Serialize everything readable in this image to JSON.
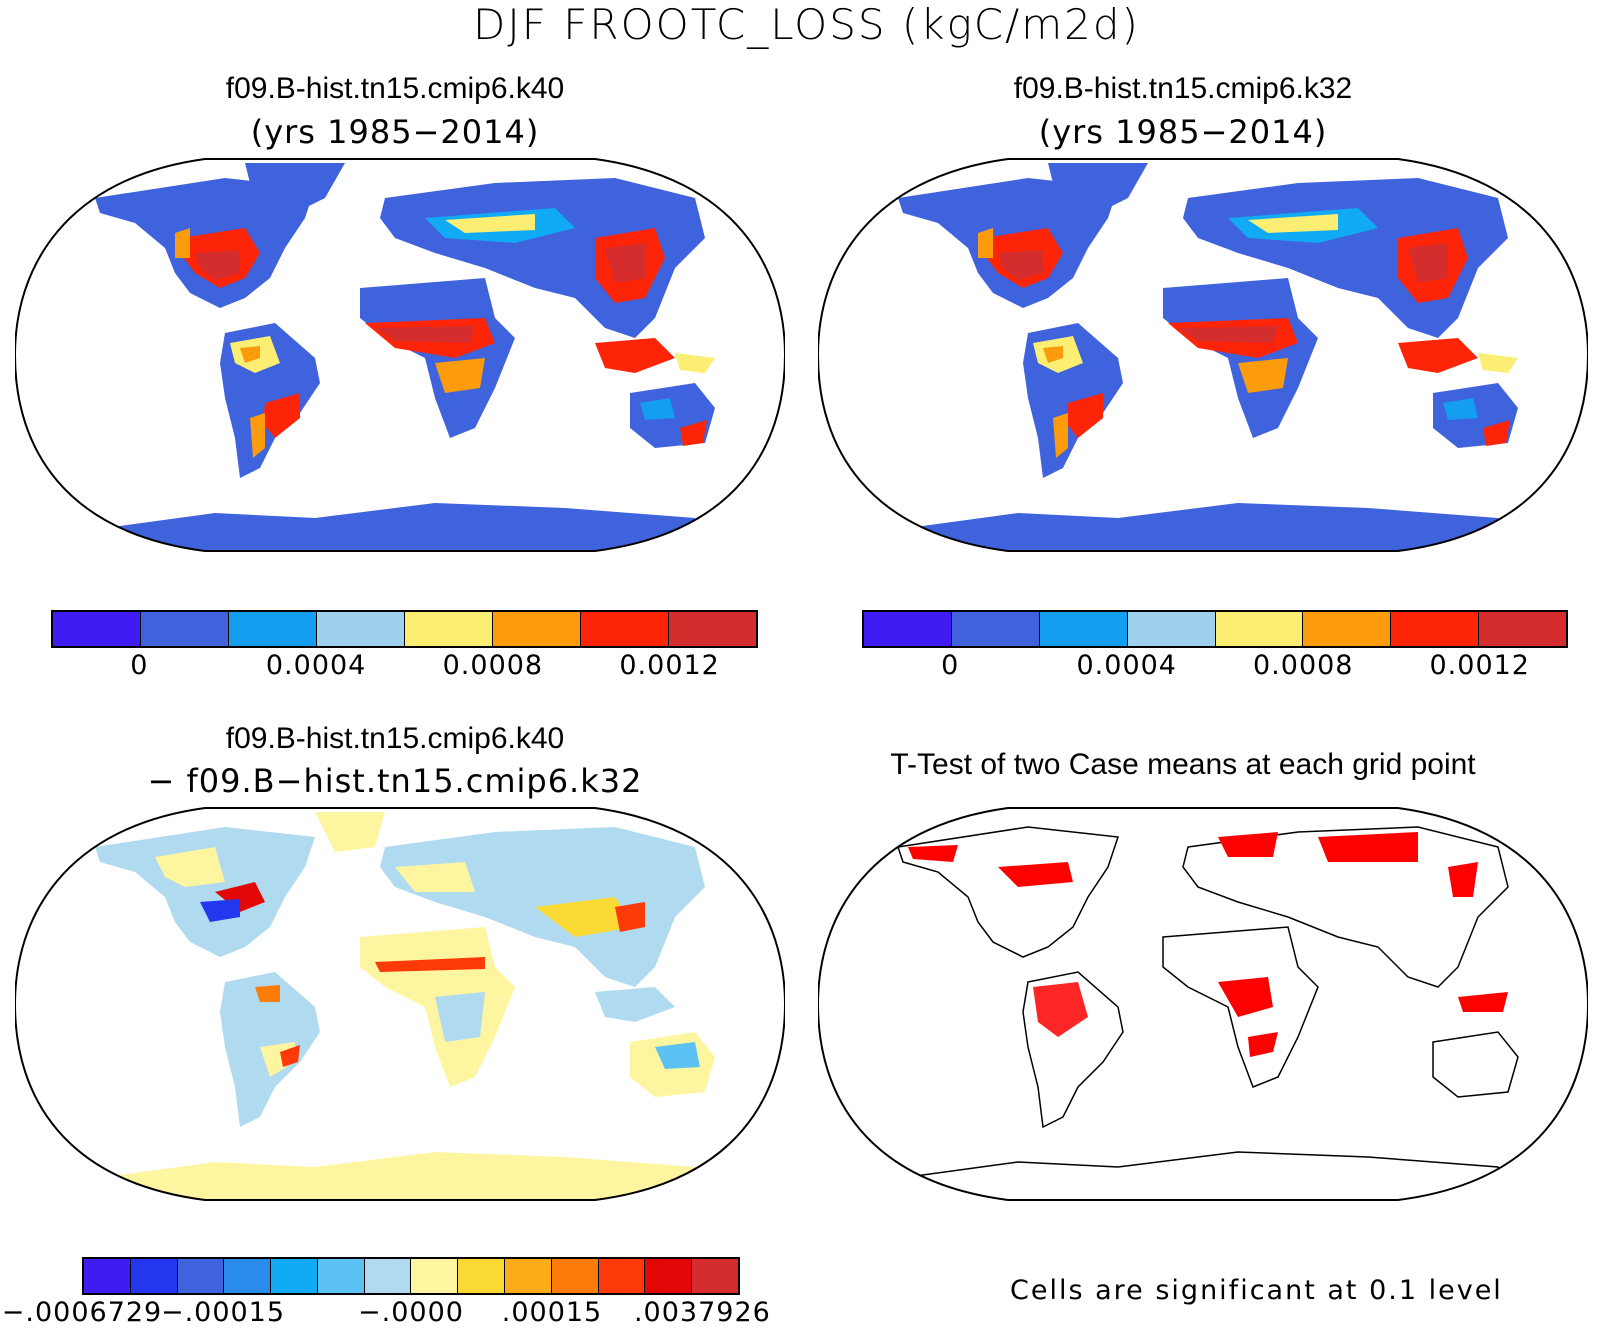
{
  "figure": {
    "title": "DJF FROOTC_LOSS (kgC/m2d)"
  },
  "panels": {
    "top_left": {
      "title": "f09.B-hist.tn15.cmip6.k40",
      "subtitle": "(yrs 1985−2014)"
    },
    "top_right": {
      "title": "f09.B-hist.tn15.cmip6.k32",
      "subtitle": "(yrs 1985−2014)"
    },
    "bottom_left": {
      "title": "f09.B-hist.tn15.cmip6.k40",
      "subtitle": "− f09.B−hist.tn15.cmip6.k32"
    },
    "bottom_right": {
      "title": "T-Test of two Case means at each grid point",
      "note": "Cells are significant at 0.1 level"
    }
  },
  "colorbars": {
    "mean": {
      "colors": [
        "#3e1cf2",
        "#3f62dd",
        "#139ef0",
        "#9dd1ee",
        "#fbee72",
        "#fc9c0c",
        "#fd2407",
        "#d52d2d"
      ],
      "tick_labels": [
        "0",
        "0.0004",
        "0.0008",
        "0.0012"
      ]
    },
    "diff": {
      "colors": [
        "#3e1cf2",
        "#2338ee",
        "#3f62dd",
        "#2b8bec",
        "#10aaf5",
        "#5bc2f3",
        "#b0daf0",
        "#fdf5a0",
        "#fbd934",
        "#fcac18",
        "#fc7c0a",
        "#fd3a08",
        "#e40707",
        "#d52d2d"
      ],
      "tick_labels": [
        "−.0006729",
        "−.00015",
        "−.0000",
        ".00015",
        ".0037926"
      ]
    }
  }
}
